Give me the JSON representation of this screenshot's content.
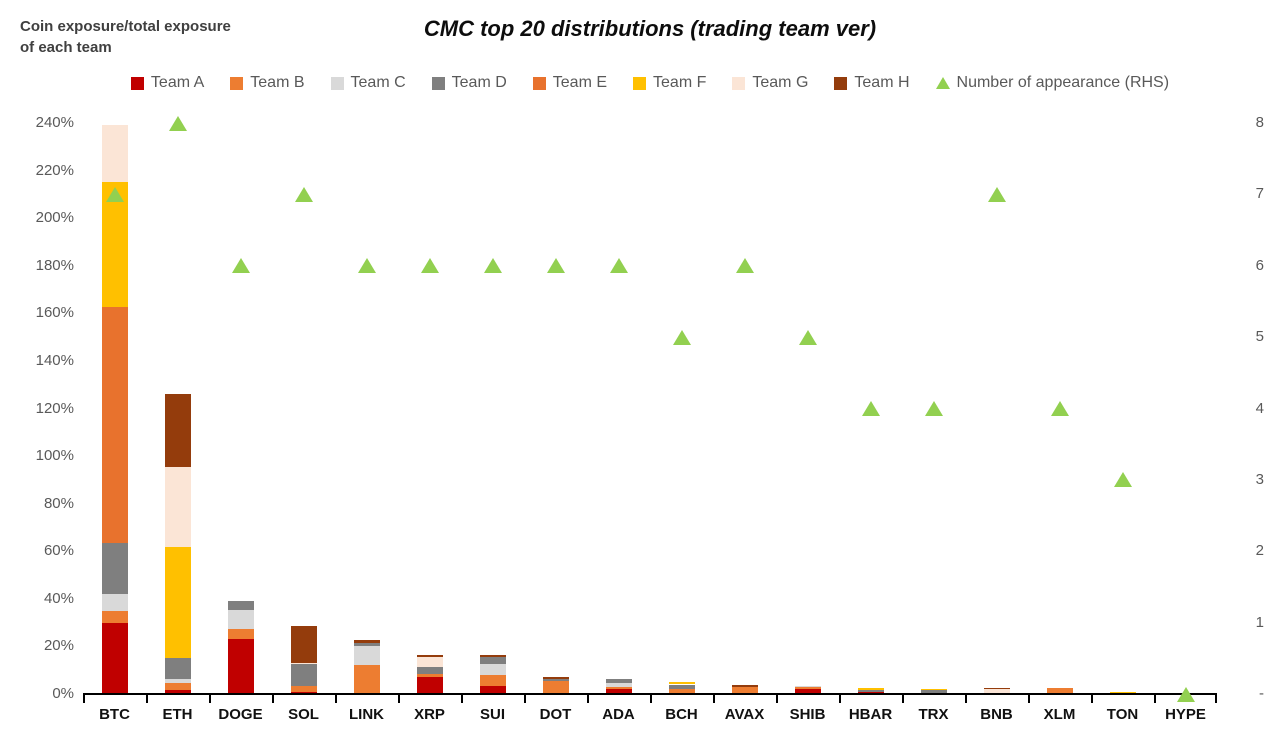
{
  "header": {
    "axis_title_line1": "Coin exposure/total exposure",
    "axis_title_line2": "of each team",
    "title": "CMC top 20 distributions (trading team ver)"
  },
  "chart_data": {
    "type": "bar",
    "subtype": "stacked-column-with-scatter-markers",
    "title": "CMC top 20 distributions (trading team ver)",
    "left_axis_title": "Coin exposure/total exposure of each team",
    "gridlines": false,
    "legend_position": "top",
    "categories": [
      "BTC",
      "ETH",
      "DOGE",
      "SOL",
      "LINK",
      "XRP",
      "SUI",
      "DOT",
      "ADA",
      "BCH",
      "AVAX",
      "SHIB",
      "HBAR",
      "TRX",
      "BNB",
      "XLM",
      "TON",
      "HYPE"
    ],
    "series": [
      {
        "name": "Team A",
        "color": "#C00000",
        "values": [
          30,
          1.5,
          23,
          1,
          0,
          7,
          3.5,
          0,
          2,
          0,
          0,
          2,
          1,
          0,
          0,
          0,
          0,
          0
        ]
      },
      {
        "name": "Team B",
        "color": "#ED7D31",
        "values": [
          5,
          3,
          4.5,
          2.5,
          12,
          1.5,
          4.5,
          5.5,
          1,
          2,
          3,
          1,
          0,
          0,
          0,
          2.5,
          0,
          0
        ]
      },
      {
        "name": "Team C",
        "color": "#D9D9D9",
        "values": [
          7,
          2,
          8,
          0,
          8,
          0,
          4.5,
          0,
          1.5,
          0,
          0,
          0.5,
          0,
          0,
          0,
          0,
          0,
          0
        ]
      },
      {
        "name": "Team D",
        "color": "#7F7F7F",
        "values": [
          21.5,
          8.5,
          3.5,
          9,
          1.5,
          3,
          3,
          1,
          2,
          2,
          0,
          0,
          0.7,
          1.5,
          0,
          0,
          0,
          0
        ]
      },
      {
        "name": "Team E",
        "color": "#E8722D",
        "values": [
          99,
          0,
          0,
          0,
          0,
          0,
          0,
          0,
          0,
          0,
          0,
          0,
          0,
          0,
          0,
          0,
          0,
          0
        ]
      },
      {
        "name": "Team F",
        "color": "#FFC000",
        "values": [
          52.5,
          47,
          0,
          0,
          0,
          0,
          0,
          0,
          0,
          1,
          0,
          0,
          0.8,
          0.8,
          0,
          0,
          1,
          0
        ]
      },
      {
        "name": "Team G",
        "color": "#FBE5D6",
        "values": [
          24,
          33.5,
          0,
          0.5,
          0,
          4,
          0,
          0,
          0,
          0,
          0,
          0,
          0,
          0,
          2,
          0,
          0,
          0
        ]
      },
      {
        "name": "Team H",
        "color": "#943C0C",
        "values": [
          0,
          30.5,
          0,
          15.5,
          1,
          1,
          1,
          0.5,
          0,
          0,
          0.8,
          0,
          0,
          0,
          0.6,
          0,
          0,
          0
        ]
      }
    ],
    "scatter": {
      "name": "Number of appearance (RHS)",
      "color": "#92D050",
      "marker": "triangle-up",
      "values": [
        7,
        8,
        6,
        7,
        6,
        6,
        6,
        6,
        6,
        5,
        6,
        5,
        4,
        4,
        7,
        4,
        3,
        0
      ]
    },
    "left_axis": {
      "min": 0,
      "max": 240,
      "step": 20,
      "tick_labels": [
        "0%",
        "20%",
        "40%",
        "60%",
        "80%",
        "100%",
        "120%",
        "140%",
        "160%",
        "180%",
        "200%",
        "220%",
        "240%"
      ]
    },
    "right_axis": {
      "min": 0,
      "max": 8,
      "step": 1,
      "tick_labels": [
        "-",
        "1",
        "2",
        "3",
        "4",
        "5",
        "6",
        "7",
        "8"
      ]
    }
  }
}
